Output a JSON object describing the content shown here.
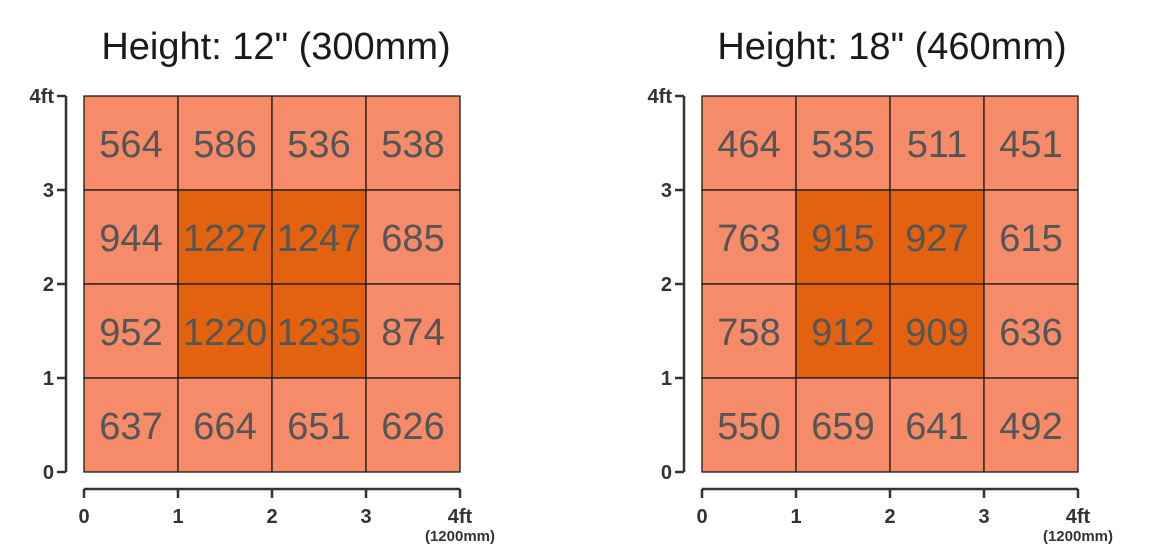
{
  "chart_data": [
    {
      "type": "heatmap",
      "title": "Height: 12\" (300mm)",
      "x_ticks": [
        "0",
        "1",
        "2",
        "3",
        "4ft"
      ],
      "y_ticks": [
        "0",
        "1",
        "2",
        "3",
        "4ft"
      ],
      "x_unit_note": "(1200mm)",
      "rows_top_to_bottom": [
        [
          "564",
          "586",
          "536",
          "538"
        ],
        [
          "944",
          "1227",
          "1247",
          "685"
        ],
        [
          "952",
          "1220",
          "1235",
          "874"
        ],
        [
          "637",
          "664",
          "651",
          "626"
        ]
      ]
    },
    {
      "type": "heatmap",
      "title": "Height: 18\" (460mm)",
      "x_ticks": [
        "0",
        "1",
        "2",
        "3",
        "4ft"
      ],
      "y_ticks": [
        "0",
        "1",
        "2",
        "3",
        "4ft"
      ],
      "x_unit_note": "(1200mm)",
      "rows_top_to_bottom": [
        [
          "464",
          "535",
          "511",
          "451"
        ],
        [
          "763",
          "915",
          "927",
          "615"
        ],
        [
          "758",
          "912",
          "909",
          "636"
        ],
        [
          "550",
          "659",
          "641",
          "492"
        ]
      ]
    }
  ],
  "colors": {
    "low": "#f58b68",
    "high": "#e2620f",
    "grid": "#1a1a1a",
    "value_text": "#555555",
    "axis": "#333333"
  }
}
